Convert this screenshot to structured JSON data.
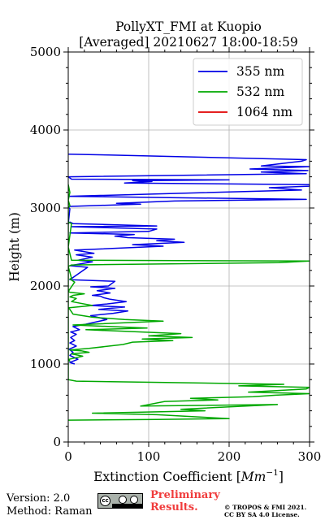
{
  "chart_data": {
    "type": "line",
    "title": "PollyXT_FMI at Kuopio",
    "subtitle": "[Averaged] 20210627 18:00-18:59",
    "xlabel": "Extinction Coefficient [",
    "xlabel_unit": "Mm",
    "xlabel_exp": "−1",
    "xlabel_close": "]",
    "ylabel": "Height (m)",
    "xlim": [
      0,
      300
    ],
    "ylim": [
      0,
      5000
    ],
    "grid": true,
    "legend_position": "top-right",
    "x_ticks": [
      0,
      100,
      200,
      300
    ],
    "y_ticks": [
      0,
      1000,
      2000,
      3000,
      4000,
      5000
    ],
    "series": [
      {
        "name": "355 nm",
        "color": "#0000e6",
        "points": [
          [
            8,
            1000
          ],
          [
            2,
            1020
          ],
          [
            12,
            1060
          ],
          [
            2,
            1110
          ],
          [
            6,
            1150
          ],
          [
            1,
            1190
          ],
          [
            10,
            1230
          ],
          [
            2,
            1270
          ],
          [
            8,
            1300
          ],
          [
            3,
            1340
          ],
          [
            10,
            1380
          ],
          [
            3,
            1410
          ],
          [
            14,
            1440
          ],
          [
            6,
            1480
          ],
          [
            22,
            1510
          ],
          [
            48,
            1570
          ],
          [
            28,
            1620
          ],
          [
            56,
            1650
          ],
          [
            74,
            1680
          ],
          [
            38,
            1700
          ],
          [
            70,
            1730
          ],
          [
            28,
            1750
          ],
          [
            48,
            1770
          ],
          [
            72,
            1800
          ],
          [
            52,
            1830
          ],
          [
            44,
            1850
          ],
          [
            40,
            1870
          ],
          [
            30,
            1880
          ],
          [
            52,
            1910
          ],
          [
            36,
            1940
          ],
          [
            58,
            1970
          ],
          [
            28,
            1990
          ],
          [
            50,
            2000
          ],
          [
            58,
            2060
          ],
          [
            2,
            2080
          ],
          [
            24,
            2240
          ],
          [
            2,
            2260
          ],
          [
            30,
            2310
          ],
          [
            12,
            2330
          ],
          [
            30,
            2370
          ],
          [
            10,
            2400
          ],
          [
            32,
            2420
          ],
          [
            8,
            2460
          ],
          [
            118,
            2510
          ],
          [
            80,
            2530
          ],
          [
            144,
            2560
          ],
          [
            110,
            2580
          ],
          [
            132,
            2600
          ],
          [
            74,
            2620
          ],
          [
            58,
            2640
          ],
          [
            82,
            2660
          ],
          [
            2,
            2680
          ],
          [
            100,
            2700
          ],
          [
            110,
            2730
          ],
          [
            4,
            2760
          ],
          [
            110,
            2770
          ],
          [
            6,
            2800
          ],
          [
            2,
            2820
          ],
          [
            0,
            2800
          ],
          [
            2,
            2990
          ],
          [
            0,
            3020
          ],
          [
            90,
            3050
          ],
          [
            60,
            3060
          ],
          [
            132,
            3090
          ],
          [
            296,
            3110
          ],
          [
            0,
            3150
          ],
          [
            290,
            3230
          ],
          [
            250,
            3260
          ],
          [
            300,
            3280
          ],
          [
            300,
            3300
          ],
          [
            70,
            3320
          ],
          [
            104,
            3340
          ],
          [
            80,
            3350
          ],
          [
            200,
            3360
          ],
          [
            4,
            3370
          ],
          [
            0,
            3400
          ],
          [
            296,
            3440
          ],
          [
            240,
            3460
          ],
          [
            298,
            3480
          ],
          [
            226,
            3500
          ],
          [
            300,
            3530
          ],
          [
            240,
            3540
          ],
          [
            290,
            3600
          ],
          [
            296,
            3620
          ],
          [
            50,
            3680
          ],
          [
            0,
            3690
          ]
        ]
      },
      {
        "name": "532 nm",
        "color": "#00a800",
        "points": [
          [
            2,
            1030
          ],
          [
            1,
            1060
          ],
          [
            18,
            1100
          ],
          [
            4,
            1130
          ],
          [
            26,
            1150
          ],
          [
            16,
            1170
          ],
          [
            2,
            1180
          ],
          [
            26,
            1200
          ],
          [
            68,
            1250
          ],
          [
            80,
            1280
          ],
          [
            130,
            1300
          ],
          [
            92,
            1320
          ],
          [
            154,
            1340
          ],
          [
            100,
            1360
          ],
          [
            140,
            1390
          ],
          [
            22,
            1440
          ],
          [
            98,
            1460
          ],
          [
            6,
            1500
          ],
          [
            118,
            1550
          ],
          [
            70,
            1570
          ],
          [
            30,
            1600
          ],
          [
            6,
            1640
          ],
          [
            2,
            1700
          ],
          [
            0,
            1720
          ],
          [
            30,
            1750
          ],
          [
            4,
            1800
          ],
          [
            10,
            1840
          ],
          [
            2,
            1860
          ],
          [
            6,
            1880
          ],
          [
            20,
            1900
          ],
          [
            2,
            1920
          ],
          [
            0,
            1930
          ],
          [
            8,
            2050
          ],
          [
            2,
            2090
          ],
          [
            4,
            2100
          ],
          [
            0,
            2250
          ],
          [
            4,
            2270
          ],
          [
            262,
            2300
          ],
          [
            300,
            2320
          ],
          [
            4,
            2330
          ],
          [
            0,
            2500
          ],
          [
            4,
            2800
          ],
          [
            0,
            2820
          ],
          [
            0,
            3000
          ],
          [
            2,
            3030
          ],
          [
            0,
            3100
          ],
          [
            2,
            3200
          ],
          [
            0,
            3300
          ],
          [
            0,
            800
          ],
          [
            10,
            780
          ],
          [
            268,
            740
          ],
          [
            212,
            720
          ],
          [
            300,
            700
          ],
          [
            296,
            680
          ],
          [
            224,
            640
          ],
          [
            300,
            620
          ],
          [
            258,
            600
          ],
          [
            230,
            580
          ],
          [
            152,
            560
          ],
          [
            186,
            540
          ],
          [
            120,
            520
          ],
          [
            90,
            460
          ],
          [
            260,
            480
          ],
          [
            140,
            420
          ],
          [
            170,
            400
          ],
          [
            30,
            370
          ],
          [
            110,
            350
          ],
          [
            200,
            300
          ],
          [
            110,
            290
          ],
          [
            0,
            280
          ]
        ]
      },
      {
        "name": "1064 nm",
        "color": "#e00000",
        "points": []
      }
    ]
  },
  "footer": {
    "version": "Version: 2.0",
    "method": "Method: Raman",
    "cc_text": "cc",
    "preliminary_1": "Preliminary",
    "preliminary_2": "Results.",
    "copyright_1": "© TROPOS & FMI 2021.",
    "copyright_2": "CC BY SA 4.0 License."
  }
}
